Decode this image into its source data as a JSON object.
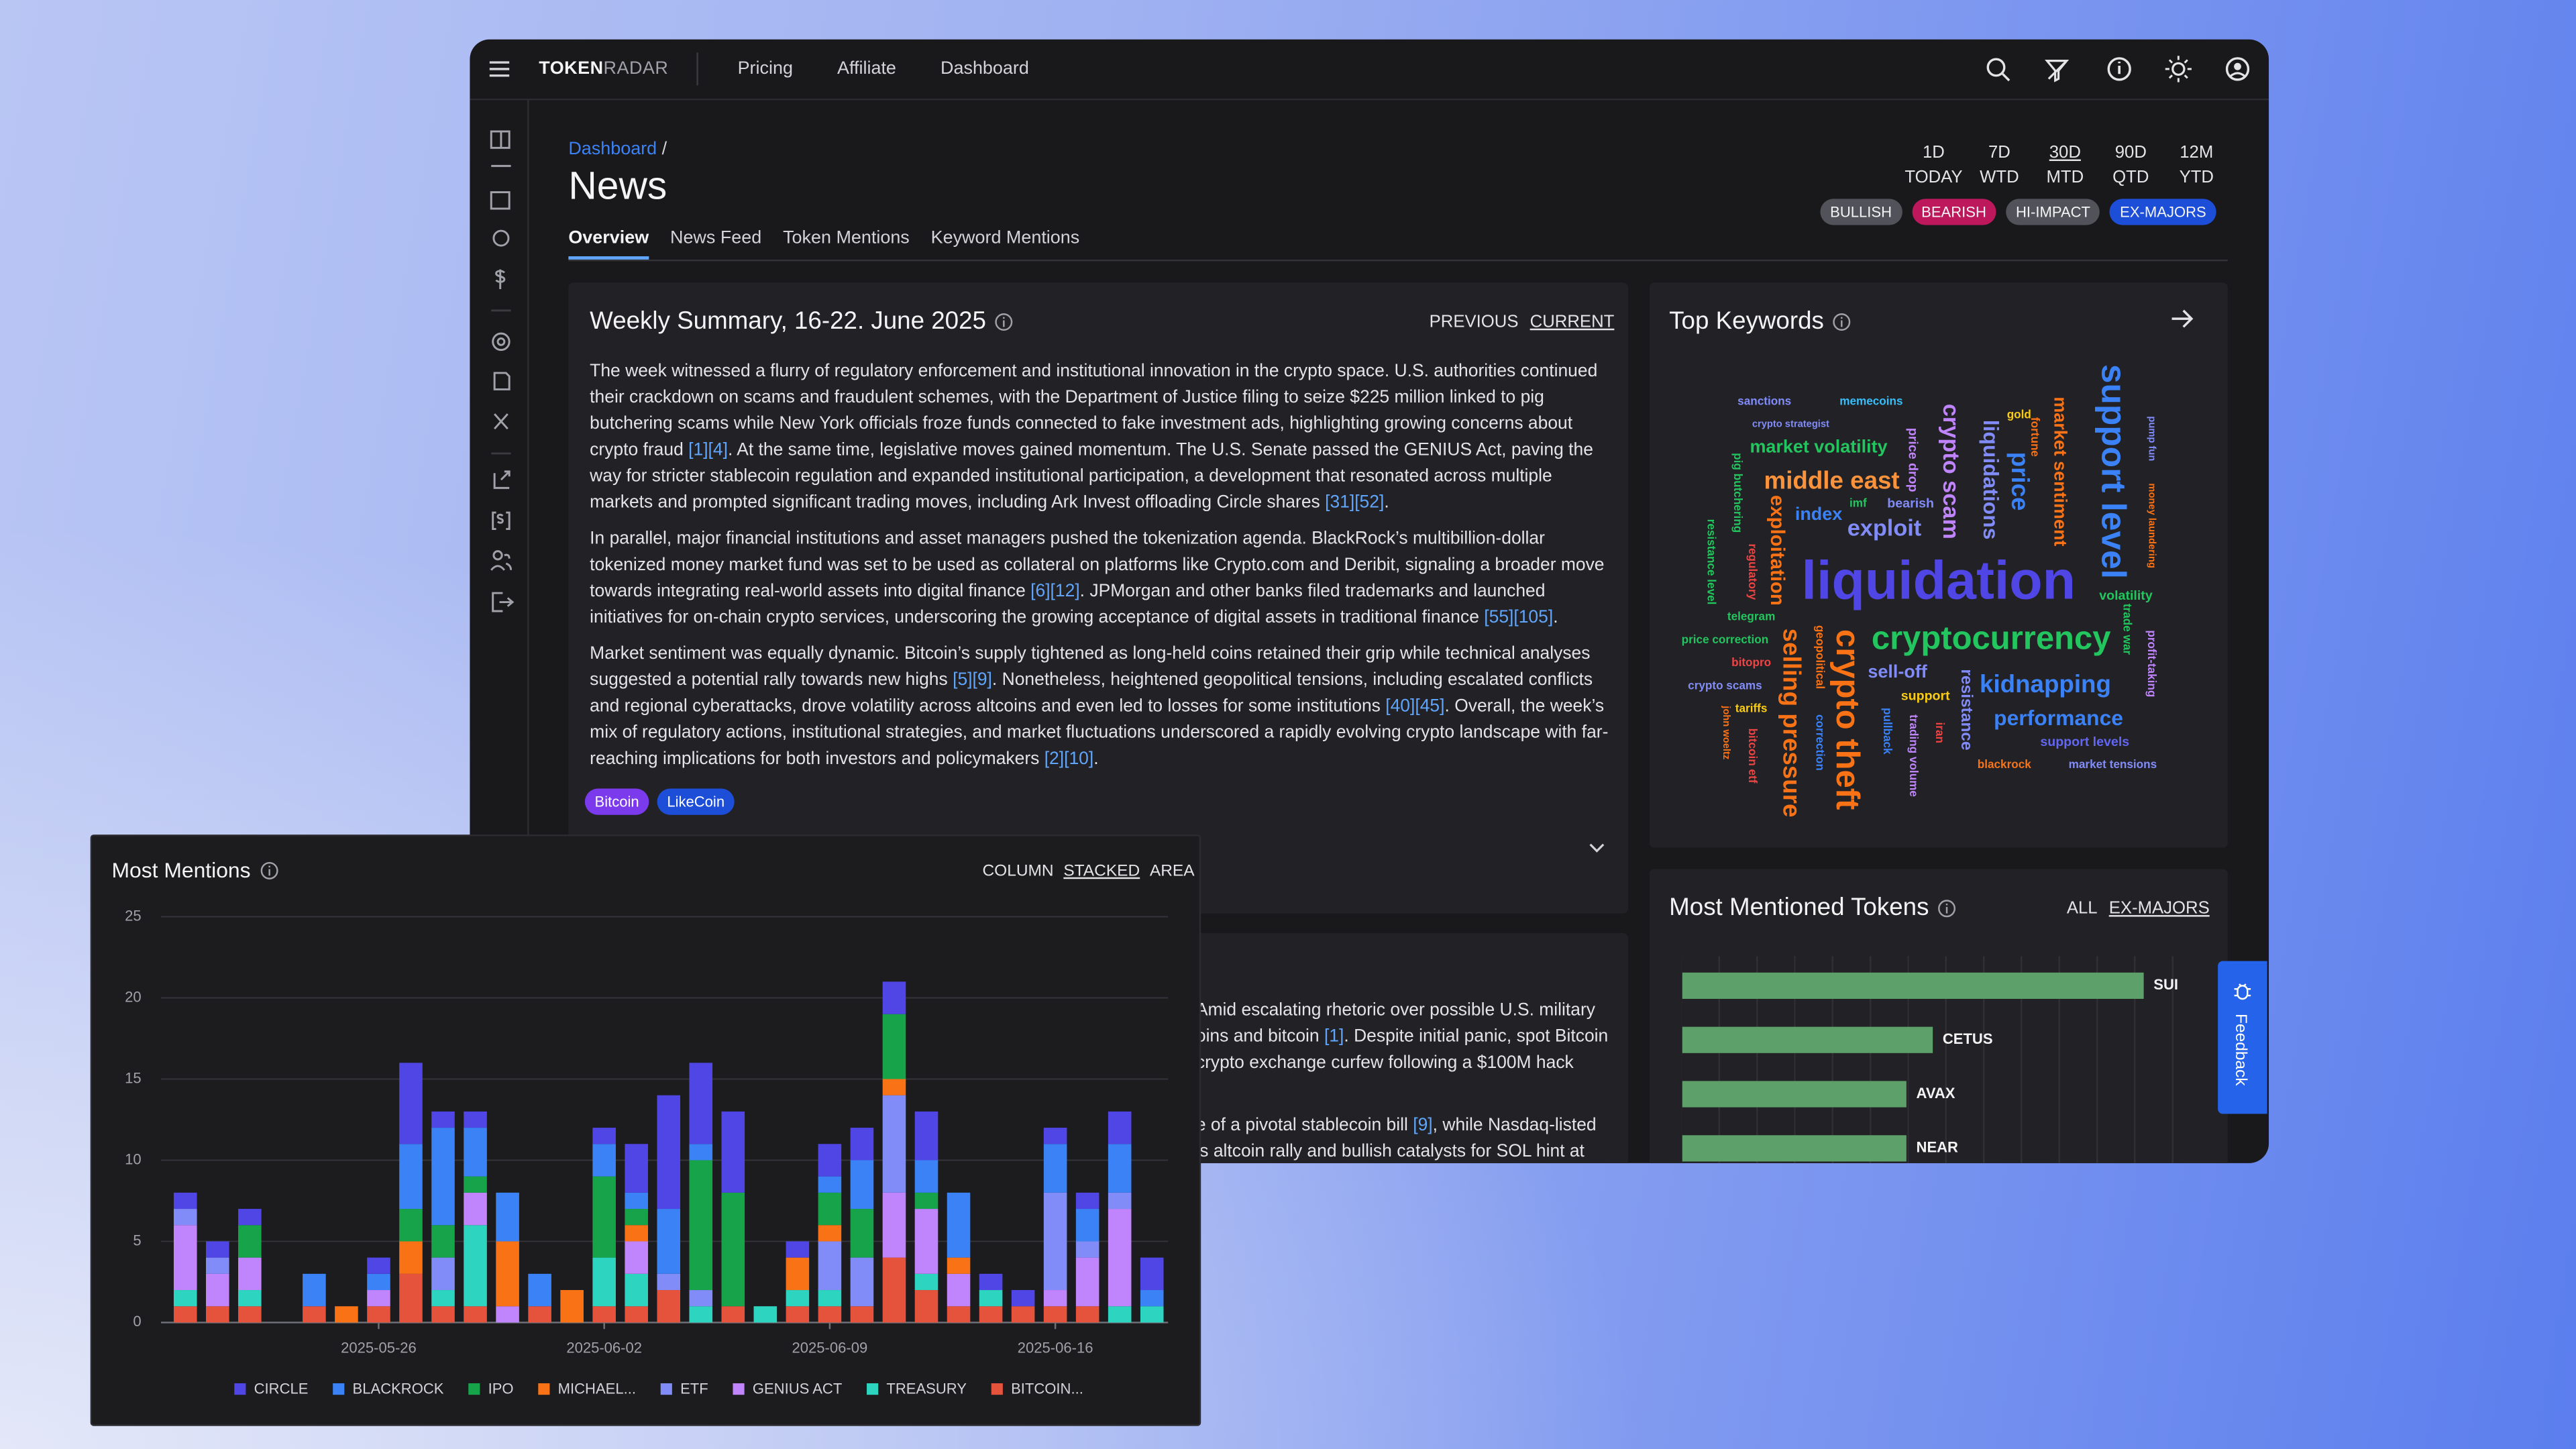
{
  "brand": [
    "TOKEN",
    "RADAR"
  ],
  "nav": [
    "Pricing",
    "Affiliate",
    "Dashboard"
  ],
  "breadcrumb": {
    "link": "Dashboard",
    "separator": "/"
  },
  "page_title": "News",
  "ranges": [
    [
      "1D",
      "TODAY"
    ],
    [
      "7D",
      "WTD"
    ],
    [
      "30D",
      "MTD"
    ],
    [
      "90D",
      "QTD"
    ],
    [
      "12M",
      "YTD"
    ]
  ],
  "filters": [
    "BULLISH",
    "BEARISH",
    "HI-IMPACT",
    "EX-MAJORS"
  ],
  "tabs": [
    "Overview",
    "News Feed",
    "Token Mentions",
    "Keyword Mentions"
  ],
  "summary": {
    "title": "Weekly Summary, 16-22. June 2025",
    "switch": [
      "PREVIOUS",
      "CURRENT"
    ],
    "paragraphs": [
      [
        {
          "text": "The week witnessed a flurry of regulatory enforcement and institutional innovation in the crypto space. U.S. authorities continued their crackdown on scams and fraudulent schemes, with the Department of Justice filing to seize $225 million linked to pig butchering scams while New York officials froze funds connected to fake investment ads, highlighting growing concerns about crypto fraud "
        },
        {
          "cite": "[1][4]"
        },
        {
          "text": ". At the same time, legislative moves gained momentum. The U.S. Senate passed the GENIUS Act, paving the way for stricter stablecoin regulation and expanded institutional participation, a development that resonated across multiple markets and prompted significant trading moves, including Ark Invest offloading Circle shares "
        },
        {
          "cite": "[31][52]"
        },
        {
          "text": "."
        }
      ],
      [
        {
          "text": "In parallel, major financial institutions and asset managers pushed the tokenization agenda. BlackRock’s multibillion-dollar tokenized money market fund was set to be used as collateral on platforms like Crypto.com and Deribit, signaling a broader move towards integrating real-world assets into digital finance "
        },
        {
          "cite": "[6][12]"
        },
        {
          "text": ". JPMorgan and other banks filed trademarks and launched initiatives for on-chain crypto services, underscoring the growing acceptance of digital assets in traditional finance "
        },
        {
          "cite": "[55][105]"
        },
        {
          "text": "."
        }
      ],
      [
        {
          "text": "Market sentiment was equally dynamic. Bitcoin’s supply tightened as long-held coins retained their grip while technical analyses suggested a potential rally towards new highs "
        },
        {
          "cite": "[5][9]"
        },
        {
          "text": ". Nonetheless, heightened geopolitical tensions, including escalated conflicts and regional cyberattacks, drove volatility across altcoins and even led to losses for some institutions "
        },
        {
          "cite": "[40][45]"
        },
        {
          "text": ". Overall, the week’s mix of regulatory actions, institutional strategies, and market fluctuations underscored a rapidly evolving crypto landscape with far-reaching implications for both investors and policymakers "
        },
        {
          "cite": "[2][10]"
        },
        {
          "text": "."
        }
      ]
    ],
    "tags": [
      "Bitcoin",
      "LikeCoin"
    ]
  },
  "second_article": [
    [
      {
        "text": "Amid escalating rhetoric over possible U.S. military"
      }
    ],
    [
      {
        "text": "oins and bitcoin "
      },
      {
        "cite": "[1]"
      },
      {
        "text": ". Despite initial panic, spot Bitcoin"
      }
    ],
    [
      {
        "text": "crypto exchange curfew following a $100M hack"
      }
    ],
    [
      {
        "text": "e of a pivotal stablecoin bill "
      },
      {
        "cite": "[9]"
      },
      {
        "text": ", while Nasdaq-listed"
      }
    ],
    [
      {
        "text": "’s altcoin rally and bullish catalysts for SOL hint at"
      }
    ]
  ],
  "keywords": {
    "title": "Top Keywords",
    "words": [
      {
        "text": "sanctions",
        "color": "#818cf8"
      },
      {
        "text": "memecoins",
        "color": "#38bdf8"
      },
      {
        "text": "crypto strategist",
        "color": "#818cf8"
      },
      {
        "text": "market volatility",
        "color": "#22c55e"
      },
      {
        "text": "middle east",
        "color": "#fb923c"
      },
      {
        "text": "imf",
        "color": "#22c55e"
      },
      {
        "text": "bearish",
        "color": "#818cf8"
      },
      {
        "text": "index",
        "color": "#3b82f6"
      },
      {
        "text": "exploit",
        "color": "#818cf8"
      },
      {
        "text": "pig butchering",
        "color": "#22c55e"
      },
      {
        "text": "exploitation",
        "color": "#f97316"
      },
      {
        "text": "regulatory",
        "color": "#ef4444"
      },
      {
        "text": "resistance level",
        "color": "#22c55e"
      },
      {
        "text": "price drop",
        "color": "#c084fc"
      },
      {
        "text": "crypto scam",
        "color": "#c084fc"
      },
      {
        "text": "liquidations",
        "color": "#818cf8"
      },
      {
        "text": "gold",
        "color": "#facc15"
      },
      {
        "text": "price",
        "color": "#3b82f6"
      },
      {
        "text": "fortune",
        "color": "#f97316"
      },
      {
        "text": "market sentiment",
        "color": "#f97316"
      },
      {
        "text": "support level",
        "color": "#3b82f6"
      },
      {
        "text": "pump fun",
        "color": "#818cf8"
      },
      {
        "text": "money laundering",
        "color": "#f97316"
      },
      {
        "text": "liquidation",
        "color": "#4f46e5"
      },
      {
        "text": "volatility",
        "color": "#22c55e"
      },
      {
        "text": "telegram",
        "color": "#22c55e"
      },
      {
        "text": "price correction",
        "color": "#22c55e"
      },
      {
        "text": "bitopro",
        "color": "#ef4444"
      },
      {
        "text": "crypto scams",
        "color": "#818cf8"
      },
      {
        "text": "tariffs",
        "color": "#facc15"
      },
      {
        "text": "john woeltz",
        "color": "#f97316"
      },
      {
        "text": "bitcoin etf",
        "color": "#ef4444"
      },
      {
        "text": "geopolitical",
        "color": "#f97316"
      },
      {
        "text": "selling pressure",
        "color": "#f97316"
      },
      {
        "text": "correction",
        "color": "#3b82f6"
      },
      {
        "text": "crypto theft",
        "color": "#f97316"
      },
      {
        "text": "cryptocurrency",
        "color": "#22c55e"
      },
      {
        "text": "trade war",
        "color": "#22c55e"
      },
      {
        "text": "profit-taking",
        "color": "#c084fc"
      },
      {
        "text": "sell-off",
        "color": "#818cf8"
      },
      {
        "text": "support",
        "color": "#facc15"
      },
      {
        "text": "pullback",
        "color": "#3b82f6"
      },
      {
        "text": "resistance",
        "color": "#818cf8"
      },
      {
        "text": "iran",
        "color": "#ef4444"
      },
      {
        "text": "trading volume",
        "color": "#c084fc"
      },
      {
        "text": "kidnapping",
        "color": "#3b82f6"
      },
      {
        "text": "performance",
        "color": "#3b82f6"
      },
      {
        "text": "support levels",
        "color": "#6366f1"
      },
      {
        "text": "blackrock",
        "color": "#f97316"
      },
      {
        "text": "market tensions",
        "color": "#818cf8"
      }
    ]
  },
  "feedback": "Feedback",
  "chart_data": [
    {
      "type": "bar",
      "stacked": true,
      "title": "Most Mentions",
      "modes": [
        "COLUMN",
        "STACKED",
        "AREA"
      ],
      "categories": [
        null,
        null,
        null,
        null,
        null,
        null,
        "2025-05-26",
        null,
        null,
        null,
        null,
        null,
        null,
        "2025-06-02",
        null,
        null,
        null,
        null,
        null,
        null,
        "2025-06-09",
        null,
        null,
        null,
        null,
        null,
        null,
        "2025-06-16",
        null,
        null,
        null
      ],
      "series": [
        {
          "name": "CIRCLE",
          "color": "#4f46e5",
          "values": [
            1,
            1,
            1,
            0,
            0,
            0,
            1,
            5,
            1,
            1,
            0,
            0,
            0,
            1,
            3,
            7,
            5,
            5,
            0,
            1,
            2,
            2,
            2,
            3,
            0,
            1,
            1,
            1,
            1,
            2,
            2
          ]
        },
        {
          "name": "BLACKROCK",
          "color": "#3b82f6",
          "values": [
            0,
            0,
            0,
            0,
            2,
            0,
            1,
            4,
            6,
            3,
            3,
            2,
            0,
            2,
            1,
            4,
            1,
            0,
            0,
            0,
            1,
            3,
            0,
            2,
            4,
            0,
            0,
            3,
            2,
            3,
            1
          ]
        },
        {
          "name": "IPO",
          "color": "#16a34a",
          "values": [
            0,
            0,
            2,
            0,
            0,
            0,
            0,
            2,
            2,
            1,
            0,
            0,
            0,
            5,
            1,
            0,
            8,
            7,
            0,
            0,
            2,
            3,
            4,
            1,
            0,
            0,
            0,
            0,
            0,
            0,
            0
          ]
        },
        {
          "name": "MICHAEL...",
          "color": "#f97316",
          "values": [
            0,
            0,
            0,
            0,
            0,
            1,
            0,
            2,
            0,
            0,
            4,
            0,
            2,
            0,
            1,
            0,
            0,
            0,
            0,
            2,
            1,
            0,
            1,
            0,
            1,
            0,
            0,
            0,
            0,
            0,
            0
          ]
        },
        {
          "name": "ETF",
          "color": "#818cf8",
          "values": [
            1,
            1,
            0,
            0,
            0,
            0,
            0,
            0,
            2,
            0,
            0,
            0,
            0,
            0,
            0,
            1,
            1,
            0,
            0,
            0,
            3,
            3,
            6,
            0,
            0,
            0,
            0,
            6,
            1,
            1,
            0
          ]
        },
        {
          "name": "GENIUS ACT",
          "color": "#c084fc",
          "values": [
            4,
            2,
            2,
            0,
            0,
            0,
            1,
            0,
            0,
            2,
            1,
            0,
            0,
            0,
            2,
            0,
            0,
            0,
            0,
            0,
            0,
            0,
            4,
            4,
            2,
            0,
            0,
            1,
            3,
            6,
            0
          ]
        },
        {
          "name": "TREASURY",
          "color": "#2dd4bf",
          "values": [
            1,
            0,
            1,
            0,
            0,
            0,
            0,
            0,
            1,
            5,
            0,
            0,
            0,
            3,
            2,
            0,
            1,
            0,
            1,
            1,
            1,
            0,
            0,
            1,
            0,
            1,
            0,
            0,
            0,
            1,
            1
          ]
        },
        {
          "name": "BITCOIN...",
          "color": "#e5533d",
          "values": [
            1,
            1,
            1,
            0,
            1,
            0,
            1,
            3,
            1,
            1,
            0,
            1,
            0,
            1,
            1,
            2,
            0,
            1,
            0,
            1,
            1,
            1,
            4,
            2,
            1,
            1,
            1,
            1,
            1,
            0,
            0
          ]
        }
      ],
      "ylim": [
        0,
        25
      ],
      "yticks": [
        0,
        5,
        10,
        15,
        20,
        25
      ],
      "grid": true,
      "legend": "bottom"
    },
    {
      "type": "barh",
      "title": "Most Mentioned Tokens",
      "modes": [
        "ALL",
        "EX-MAJORS"
      ],
      "categories": [
        "SUI",
        "CETUS",
        "AVAX",
        "NEAR"
      ],
      "values": [
        35,
        19,
        17,
        17
      ],
      "color": "#5ea06a",
      "xlim": [
        0,
        40
      ]
    }
  ]
}
